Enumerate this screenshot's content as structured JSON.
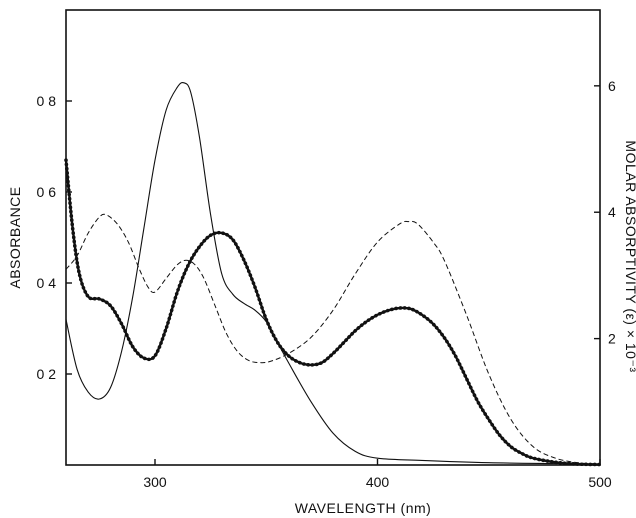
{
  "chart_data": {
    "type": "line",
    "xlabel": "WAVELENGTH (nm)",
    "ylabel": "ABSORBANCE",
    "y2label": "MOLAR ABSORPTIVITY (ε) × 10⁻³",
    "xlim": [
      260,
      500
    ],
    "ylim": [
      0,
      1.0
    ],
    "y2lim": [
      0,
      7.2
    ],
    "x_ticks": [
      300,
      400,
      500
    ],
    "y_ticks": [
      0.2,
      0.4,
      0.6,
      0.8
    ],
    "y_tick_labels": [
      "0 2",
      "0 4",
      "0 6",
      "0 8"
    ],
    "y2_ticks": [
      2,
      4,
      6
    ],
    "y2_tick_labels": [
      "2",
      "4",
      "6"
    ],
    "grid": false,
    "series": [
      {
        "style": "solid",
        "x": [
          260,
          265,
          270,
          275,
          280,
          285,
          290,
          295,
          300,
          305,
          310,
          313,
          316,
          320,
          325,
          330,
          335,
          340,
          345,
          350,
          355,
          360,
          370,
          380,
          390,
          400,
          420,
          450,
          480,
          500
        ],
        "y": [
          0.32,
          0.21,
          0.16,
          0.145,
          0.17,
          0.25,
          0.37,
          0.52,
          0.67,
          0.78,
          0.83,
          0.84,
          0.82,
          0.72,
          0.55,
          0.42,
          0.375,
          0.355,
          0.34,
          0.315,
          0.27,
          0.225,
          0.14,
          0.07,
          0.03,
          0.015,
          0.01,
          0.005,
          0.003,
          0.002
        ]
      },
      {
        "style": "dashed",
        "x": [
          260,
          265,
          270,
          275,
          278,
          283,
          288,
          293,
          297,
          300,
          305,
          310,
          314,
          318,
          322,
          327,
          332,
          337,
          342,
          347,
          352,
          360,
          370,
          380,
          390,
          400,
          410,
          414,
          418,
          425,
          430,
          440,
          450,
          460,
          470,
          480,
          490,
          500
        ],
        "y": [
          0.43,
          0.46,
          0.51,
          0.545,
          0.55,
          0.53,
          0.49,
          0.43,
          0.39,
          0.38,
          0.41,
          0.44,
          0.45,
          0.44,
          0.41,
          0.35,
          0.29,
          0.25,
          0.23,
          0.225,
          0.228,
          0.245,
          0.28,
          0.34,
          0.42,
          0.49,
          0.53,
          0.535,
          0.53,
          0.49,
          0.45,
          0.33,
          0.2,
          0.1,
          0.04,
          0.015,
          0.005,
          0.002
        ]
      },
      {
        "style": "dotted-solid",
        "x": [
          260,
          263,
          266,
          270,
          275,
          280,
          285,
          290,
          295,
          300,
          305,
          310,
          315,
          320,
          325,
          330,
          335,
          340,
          345,
          350,
          355,
          360,
          365,
          370,
          375,
          380,
          385,
          390,
          395,
          400,
          405,
          410,
          415,
          420,
          425,
          430,
          435,
          440,
          445,
          450,
          455,
          460,
          465,
          470,
          480,
          490,
          500
        ],
        "y": [
          0.67,
          0.52,
          0.42,
          0.37,
          0.365,
          0.35,
          0.31,
          0.26,
          0.235,
          0.24,
          0.3,
          0.38,
          0.44,
          0.48,
          0.505,
          0.51,
          0.495,
          0.45,
          0.39,
          0.32,
          0.27,
          0.24,
          0.225,
          0.22,
          0.225,
          0.245,
          0.27,
          0.295,
          0.315,
          0.33,
          0.34,
          0.345,
          0.343,
          0.33,
          0.31,
          0.28,
          0.24,
          0.19,
          0.14,
          0.1,
          0.065,
          0.04,
          0.025,
          0.015,
          0.006,
          0.002,
          0.001
        ]
      }
    ]
  }
}
